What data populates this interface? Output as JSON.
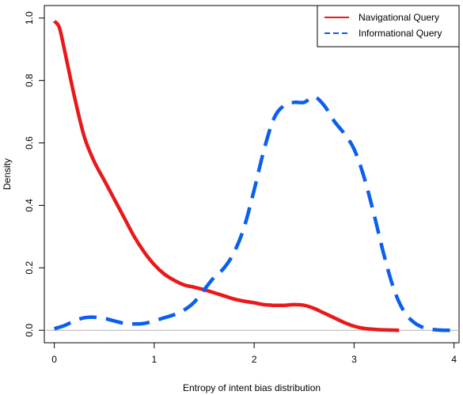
{
  "chart_data": {
    "type": "line",
    "title": "",
    "xlabel": "Entropy of intent bias distribution",
    "ylabel": "Density",
    "xlim": [
      -0.1,
      4.05
    ],
    "ylim": [
      -0.04,
      1.04
    ],
    "x_ticks": [
      0,
      1,
      2,
      3,
      4
    ],
    "x_tick_labels": [
      "0",
      "1",
      "2",
      "3",
      "4"
    ],
    "y_ticks": [
      0.0,
      0.2,
      0.4,
      0.6,
      0.8,
      1.0
    ],
    "y_tick_labels": [
      "0.0",
      "0.2",
      "0.4",
      "0.6",
      "0.8",
      "1.0"
    ],
    "baseline": 0,
    "legend_position": "top-right",
    "series": [
      {
        "name": "Navigational Query",
        "color": "#e8191a",
        "dash": "solid",
        "points": [
          [
            0.0,
            0.99
          ],
          [
            0.05,
            0.97
          ],
          [
            0.1,
            0.9
          ],
          [
            0.2,
            0.75
          ],
          [
            0.3,
            0.62
          ],
          [
            0.4,
            0.54
          ],
          [
            0.5,
            0.48
          ],
          [
            0.6,
            0.42
          ],
          [
            0.7,
            0.36
          ],
          [
            0.8,
            0.3
          ],
          [
            0.9,
            0.25
          ],
          [
            1.0,
            0.21
          ],
          [
            1.1,
            0.18
          ],
          [
            1.2,
            0.16
          ],
          [
            1.3,
            0.145
          ],
          [
            1.4,
            0.138
          ],
          [
            1.5,
            0.13
          ],
          [
            1.6,
            0.12
          ],
          [
            1.7,
            0.11
          ],
          [
            1.8,
            0.1
          ],
          [
            1.9,
            0.093
          ],
          [
            2.0,
            0.088
          ],
          [
            2.1,
            0.082
          ],
          [
            2.2,
            0.08
          ],
          [
            2.3,
            0.08
          ],
          [
            2.4,
            0.082
          ],
          [
            2.5,
            0.08
          ],
          [
            2.6,
            0.07
          ],
          [
            2.7,
            0.055
          ],
          [
            2.8,
            0.04
          ],
          [
            2.9,
            0.025
          ],
          [
            3.0,
            0.013
          ],
          [
            3.1,
            0.006
          ],
          [
            3.2,
            0.003
          ],
          [
            3.3,
            0.001
          ],
          [
            3.45,
            0.0
          ]
        ]
      },
      {
        "name": "Informational Query",
        "color": "#0a5fef",
        "dash": "dashed",
        "points": [
          [
            0.0,
            0.005
          ],
          [
            0.1,
            0.015
          ],
          [
            0.2,
            0.03
          ],
          [
            0.3,
            0.04
          ],
          [
            0.4,
            0.042
          ],
          [
            0.5,
            0.038
          ],
          [
            0.6,
            0.03
          ],
          [
            0.7,
            0.022
          ],
          [
            0.8,
            0.02
          ],
          [
            0.9,
            0.022
          ],
          [
            1.0,
            0.03
          ],
          [
            1.1,
            0.04
          ],
          [
            1.2,
            0.05
          ],
          [
            1.3,
            0.065
          ],
          [
            1.4,
            0.09
          ],
          [
            1.5,
            0.13
          ],
          [
            1.6,
            0.17
          ],
          [
            1.7,
            0.2
          ],
          [
            1.8,
            0.25
          ],
          [
            1.9,
            0.33
          ],
          [
            2.0,
            0.45
          ],
          [
            2.1,
            0.58
          ],
          [
            2.2,
            0.68
          ],
          [
            2.3,
            0.72
          ],
          [
            2.4,
            0.73
          ],
          [
            2.5,
            0.73
          ],
          [
            2.6,
            0.748
          ],
          [
            2.7,
            0.72
          ],
          [
            2.8,
            0.67
          ],
          [
            2.9,
            0.63
          ],
          [
            3.0,
            0.58
          ],
          [
            3.1,
            0.49
          ],
          [
            3.2,
            0.37
          ],
          [
            3.3,
            0.24
          ],
          [
            3.4,
            0.13
          ],
          [
            3.5,
            0.06
          ],
          [
            3.6,
            0.025
          ],
          [
            3.7,
            0.008
          ],
          [
            3.8,
            0.002
          ],
          [
            3.9,
            0.0
          ],
          [
            4.0,
            0.0
          ]
        ]
      }
    ]
  }
}
